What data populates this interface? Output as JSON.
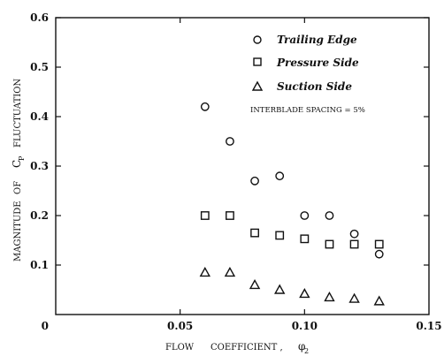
{
  "chart_data": {
    "type": "scatter",
    "xlabel_parts": [
      "FLOW",
      "COEFFICIENT ,",
      "φ",
      "2"
    ],
    "ylabel_parts": [
      "MAGNITUDE",
      "OF",
      "C",
      "P",
      "FLUCTUATION"
    ],
    "xlim": [
      0,
      0.15
    ],
    "ylim": [
      0,
      0.6
    ],
    "x_ticks": [
      {
        "value": 0,
        "label": "0"
      },
      {
        "value": 0.05,
        "label": "0.05"
      },
      {
        "value": 0.1,
        "label": "0.10"
      },
      {
        "value": 0.15,
        "label": "0.15"
      }
    ],
    "y_ticks": [
      {
        "value": 0.1,
        "label": "0.1"
      },
      {
        "value": 0.2,
        "label": "0.2"
      },
      {
        "value": 0.3,
        "label": "0.3"
      },
      {
        "value": 0.4,
        "label": "0.4"
      },
      {
        "value": 0.5,
        "label": "0.5"
      },
      {
        "value": 0.6,
        "label": "0.6"
      }
    ],
    "annotation": "INTERBLADE SPACING = 5%",
    "legend_position": "top-right",
    "series": [
      {
        "name": "Trailing Edge",
        "marker": "circle",
        "points": [
          [
            0.06,
            0.42
          ],
          [
            0.07,
            0.35
          ],
          [
            0.08,
            0.27
          ],
          [
            0.09,
            0.28
          ],
          [
            0.1,
            0.2
          ],
          [
            0.11,
            0.2
          ],
          [
            0.12,
            0.163
          ],
          [
            0.13,
            0.122
          ]
        ]
      },
      {
        "name": "Pressure Side",
        "marker": "square",
        "points": [
          [
            0.06,
            0.2
          ],
          [
            0.07,
            0.2
          ],
          [
            0.08,
            0.165
          ],
          [
            0.09,
            0.16
          ],
          [
            0.1,
            0.153
          ],
          [
            0.11,
            0.142
          ],
          [
            0.12,
            0.142
          ],
          [
            0.13,
            0.142
          ]
        ]
      },
      {
        "name": "Suction Side",
        "marker": "triangle",
        "points": [
          [
            0.06,
            0.085
          ],
          [
            0.07,
            0.085
          ],
          [
            0.08,
            0.06
          ],
          [
            0.09,
            0.05
          ],
          [
            0.1,
            0.042
          ],
          [
            0.11,
            0.035
          ],
          [
            0.12,
            0.032
          ],
          [
            0.13,
            0.027
          ]
        ]
      }
    ]
  }
}
